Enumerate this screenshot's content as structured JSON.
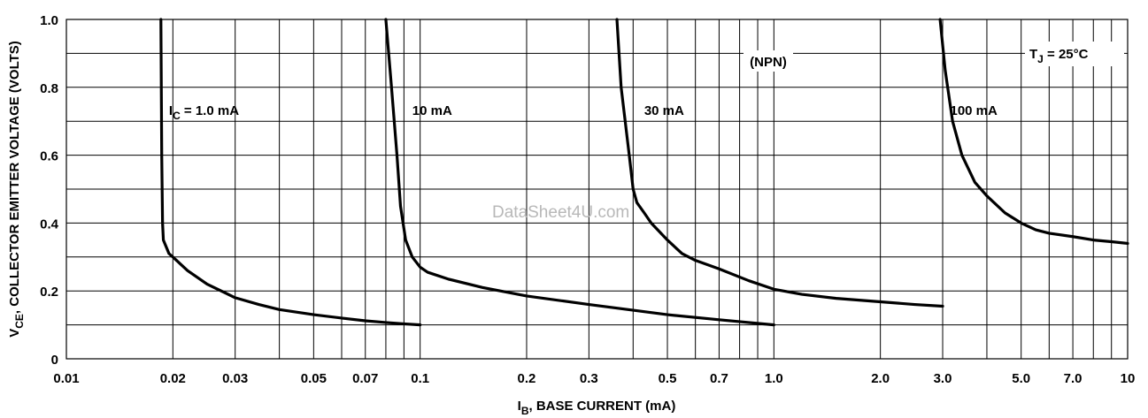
{
  "chart_data": {
    "type": "line",
    "xlabel": "I",
    "xlabel_sub": "B",
    "xlabel_rest": ", BASE CURRENT (mA)",
    "ylabel": "V",
    "ylabel_sub": "CE",
    "ylabel_rest": ", COLLECTOR EMITTER VOLTAGE (VOLTS)",
    "xscale": "log",
    "xlim": [
      0.01,
      10
    ],
    "ylim": [
      0,
      1.0
    ],
    "grid": true,
    "x_ticks": [
      0.01,
      0.02,
      0.03,
      0.05,
      0.07,
      0.1,
      0.2,
      0.3,
      0.5,
      0.7,
      1.0,
      2.0,
      3.0,
      5.0,
      7.0,
      10
    ],
    "x_tick_labels": [
      "0.01",
      "0.02",
      "0.03",
      "0.05",
      "0.07",
      "0.1",
      "0.2",
      "0.3",
      "0.5",
      "0.7",
      "1.0",
      "2.0",
      "3.0",
      "5.0",
      "7.0",
      "10"
    ],
    "y_ticks": [
      0,
      0.2,
      0.4,
      0.6,
      0.8,
      1.0
    ],
    "y_tick_labels": [
      "0",
      "0.2",
      "0.4",
      "0.6",
      "0.8",
      "1.0"
    ],
    "annotations": {
      "npn": "(NPN)",
      "temp_main": "T",
      "temp_sub": "J",
      "temp_rest": " = 25°C",
      "watermark": "DataSheet4U.com"
    },
    "series": [
      {
        "name_main": "I",
        "name_sub": "C",
        "name_rest": " = 1.0 mA",
        "points": [
          [
            0.0185,
            1.0
          ],
          [
            0.0186,
            0.6
          ],
          [
            0.0187,
            0.4
          ],
          [
            0.0188,
            0.35
          ],
          [
            0.0195,
            0.31
          ],
          [
            0.02,
            0.3
          ],
          [
            0.022,
            0.26
          ],
          [
            0.025,
            0.22
          ],
          [
            0.03,
            0.18
          ],
          [
            0.035,
            0.16
          ],
          [
            0.04,
            0.145
          ],
          [
            0.05,
            0.13
          ],
          [
            0.06,
            0.12
          ],
          [
            0.07,
            0.112
          ],
          [
            0.08,
            0.107
          ],
          [
            0.09,
            0.103
          ],
          [
            0.1,
            0.1
          ]
        ]
      },
      {
        "name_main": "",
        "name_sub": "",
        "name_rest": "10 mA",
        "points": [
          [
            0.08,
            1.0
          ],
          [
            0.083,
            0.8
          ],
          [
            0.086,
            0.6
          ],
          [
            0.088,
            0.45
          ],
          [
            0.091,
            0.35
          ],
          [
            0.095,
            0.3
          ],
          [
            0.1,
            0.27
          ],
          [
            0.105,
            0.255
          ],
          [
            0.12,
            0.235
          ],
          [
            0.15,
            0.21
          ],
          [
            0.2,
            0.185
          ],
          [
            0.3,
            0.16
          ],
          [
            0.5,
            0.13
          ],
          [
            0.7,
            0.115
          ],
          [
            1.0,
            0.1
          ]
        ]
      },
      {
        "name_main": "",
        "name_sub": "",
        "name_rest": "30 mA",
        "points": [
          [
            0.36,
            1.0
          ],
          [
            0.37,
            0.8
          ],
          [
            0.39,
            0.6
          ],
          [
            0.4,
            0.5
          ],
          [
            0.41,
            0.46
          ],
          [
            0.43,
            0.43
          ],
          [
            0.45,
            0.4
          ],
          [
            0.5,
            0.35
          ],
          [
            0.55,
            0.31
          ],
          [
            0.6,
            0.29
          ],
          [
            0.7,
            0.265
          ],
          [
            0.85,
            0.23
          ],
          [
            1.0,
            0.205
          ],
          [
            1.2,
            0.19
          ],
          [
            1.5,
            0.178
          ],
          [
            2.0,
            0.168
          ],
          [
            2.5,
            0.16
          ],
          [
            3.0,
            0.155
          ]
        ]
      },
      {
        "name_main": "",
        "name_sub": "",
        "name_rest": "100 mA",
        "points": [
          [
            2.95,
            1.0
          ],
          [
            3.05,
            0.85
          ],
          [
            3.2,
            0.7
          ],
          [
            3.4,
            0.6
          ],
          [
            3.7,
            0.52
          ],
          [
            4.0,
            0.48
          ],
          [
            4.5,
            0.43
          ],
          [
            5.0,
            0.4
          ],
          [
            5.5,
            0.38
          ],
          [
            6.0,
            0.37
          ],
          [
            7.0,
            0.36
          ],
          [
            8.0,
            0.35
          ],
          [
            9.0,
            0.345
          ],
          [
            10,
            0.34
          ]
        ]
      }
    ]
  }
}
